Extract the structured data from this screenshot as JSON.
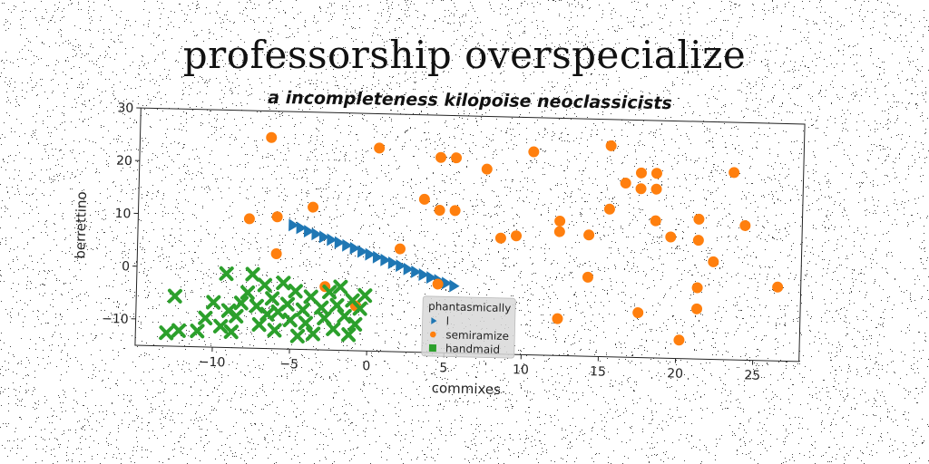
{
  "chart_data": {
    "type": "scatter",
    "title": "professorship overspecialize",
    "subtitle": "a incompleteness kilopoise neoclassicists",
    "xlabel": "commixes",
    "ylabel": "berrettino",
    "xlim": [
      -15,
      28
    ],
    "ylim": [
      -15,
      30
    ],
    "xticks": [
      -10,
      -5,
      0,
      5,
      10,
      15,
      20,
      25
    ],
    "yticks": [
      -10,
      0,
      10,
      20,
      30
    ],
    "grid": false,
    "legend": {
      "title": "phantasmically",
      "placement": "lower-center"
    },
    "series": [
      {
        "name": "l",
        "marker": "triangle-right",
        "color": "#1f77b4",
        "x": [
          -5.0,
          -4.5,
          -4.0,
          -3.5,
          -3.0,
          -2.5,
          -2.0,
          -1.5,
          -1.0,
          -0.5,
          0.0,
          0.5,
          1.0,
          1.5,
          2.0,
          2.5,
          3.0,
          3.5,
          4.0,
          4.5,
          5.0,
          5.5
        ],
        "y": [
          8.5,
          8.0,
          7.4,
          6.9,
          6.4,
          5.9,
          5.4,
          4.9,
          4.4,
          3.8,
          3.3,
          2.8,
          2.3,
          1.8,
          1.3,
          0.7,
          0.2,
          -0.3,
          -0.8,
          -1.3,
          -1.8,
          -2.3
        ]
      },
      {
        "name": "semiramize",
        "marker": "circle",
        "color": "#ff7f0e",
        "x": [
          -6.5,
          -7.8,
          -6.0,
          -3.7,
          -6.0,
          0.5,
          3.5,
          4.5,
          5.5,
          4.5,
          5.5,
          2.0,
          -2.8,
          -0.8,
          4.5,
          7.5,
          8.5,
          9.5,
          10.5,
          12.3,
          12.3,
          14.2,
          14.2,
          12.3,
          15.5,
          15.5,
          16.5,
          17.5,
          18.5,
          17.5,
          18.5,
          18.5,
          19.5,
          21.3,
          21.3,
          22.3,
          23.5,
          24.3,
          21.3,
          21.3,
          20.2,
          17.5,
          26.5
        ],
        "y": [
          25,
          9.5,
          10,
          12,
          3,
          23.5,
          14,
          22,
          22,
          12,
          12,
          4.5,
          -3.0,
          -6.5,
          -2.0,
          20,
          7,
          7.5,
          23.5,
          10.5,
          8.5,
          8,
          0,
          -8,
          25,
          13,
          18,
          20,
          20,
          17,
          17,
          11,
          8,
          11.5,
          7.5,
          3.5,
          20.5,
          10.5,
          -1.5,
          -5.5,
          -11.5,
          -6.5,
          -1.0
        ]
      },
      {
        "name": "handmaid",
        "marker": "x",
        "color": "#2ca02c",
        "x": [
          -13,
          -12.2,
          -12.5,
          -11,
          -10.5,
          -10,
          -9.5,
          -9.2,
          -9,
          -8.8,
          -8.5,
          -8.2,
          -7.8,
          -7.5,
          -7.2,
          -7,
          -6.7,
          -6.5,
          -6.2,
          -6,
          -5.8,
          -5.5,
          -5.2,
          -5,
          -4.7,
          -4.5,
          -4.2,
          -4,
          -3.7,
          -3.5,
          -3,
          -2.8,
          -2.5,
          -2.2,
          -2,
          -1.8,
          -1.5,
          -1.2,
          -1,
          -0.8,
          -0.5,
          -0.2
        ],
        "y": [
          -12.5,
          -12.0,
          -5.5,
          -12.0,
          -9.5,
          -6.5,
          -11.0,
          -1.0,
          -8.0,
          -12.0,
          -9.0,
          -6.5,
          -4.5,
          -1.0,
          -7.0,
          -10.5,
          -3.0,
          -8.5,
          -5.5,
          -11.5,
          -8.0,
          -2.5,
          -6.5,
          -9.5,
          -4.0,
          -12.5,
          -7.5,
          -10.0,
          -5.0,
          -12.0,
          -7.0,
          -9.0,
          -4.0,
          -11.0,
          -6.5,
          -3.0,
          -8.5,
          -12.0,
          -5.5,
          -10.0,
          -7.0,
          -4.5
        ]
      }
    ]
  }
}
